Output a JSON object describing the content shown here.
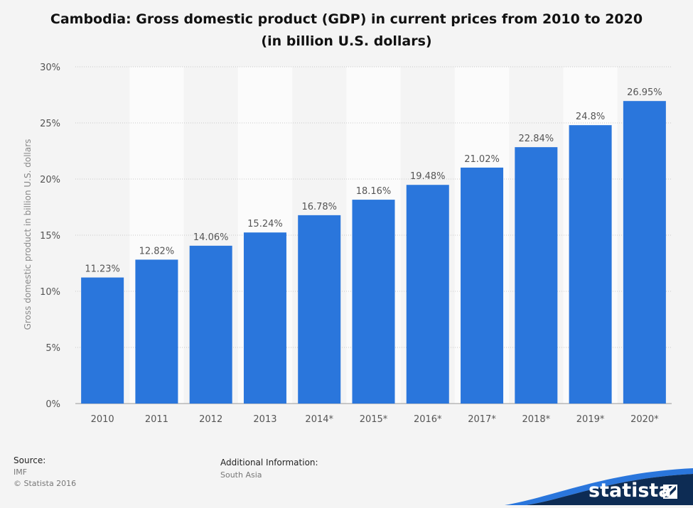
{
  "title_line1": "Cambodia: Gross domestic product (GDP) in current prices from 2010 to 2020",
  "title_line2": "(in billion U.S. dollars)",
  "chart_data": {
    "type": "bar",
    "categories": [
      "2010",
      "2011",
      "2012",
      "2013",
      "2014*",
      "2015*",
      "2016*",
      "2017*",
      "2018*",
      "2019*",
      "2020*"
    ],
    "values": [
      11.23,
      12.82,
      14.06,
      15.24,
      16.78,
      18.16,
      19.48,
      21.02,
      22.84,
      24.8,
      26.95
    ],
    "value_labels": [
      "11.23%",
      "12.82%",
      "14.06%",
      "15.24%",
      "16.78%",
      "18.16%",
      "19.48%",
      "21.02%",
      "22.84%",
      "24.8%",
      "26.95%"
    ],
    "ylabel": "Gross domestic product in billion U.S. dollars",
    "ylim": [
      0,
      30
    ],
    "yticks": [
      "0%",
      "5%",
      "10%",
      "15%",
      "20%",
      "25%",
      "30%"
    ],
    "ytick_values": [
      0,
      5,
      10,
      15,
      20,
      25,
      30
    ],
    "grid": true,
    "bar_color": "#2a76dc"
  },
  "footer": {
    "source_label": "Source:",
    "source_value": "IMF",
    "copyright": "© Statista 2016",
    "additional_label": "Additional Information:",
    "additional_value": "South Asia"
  },
  "brand": {
    "name": "statista",
    "color": "#0d2c54",
    "accent": "#2a76dc"
  }
}
